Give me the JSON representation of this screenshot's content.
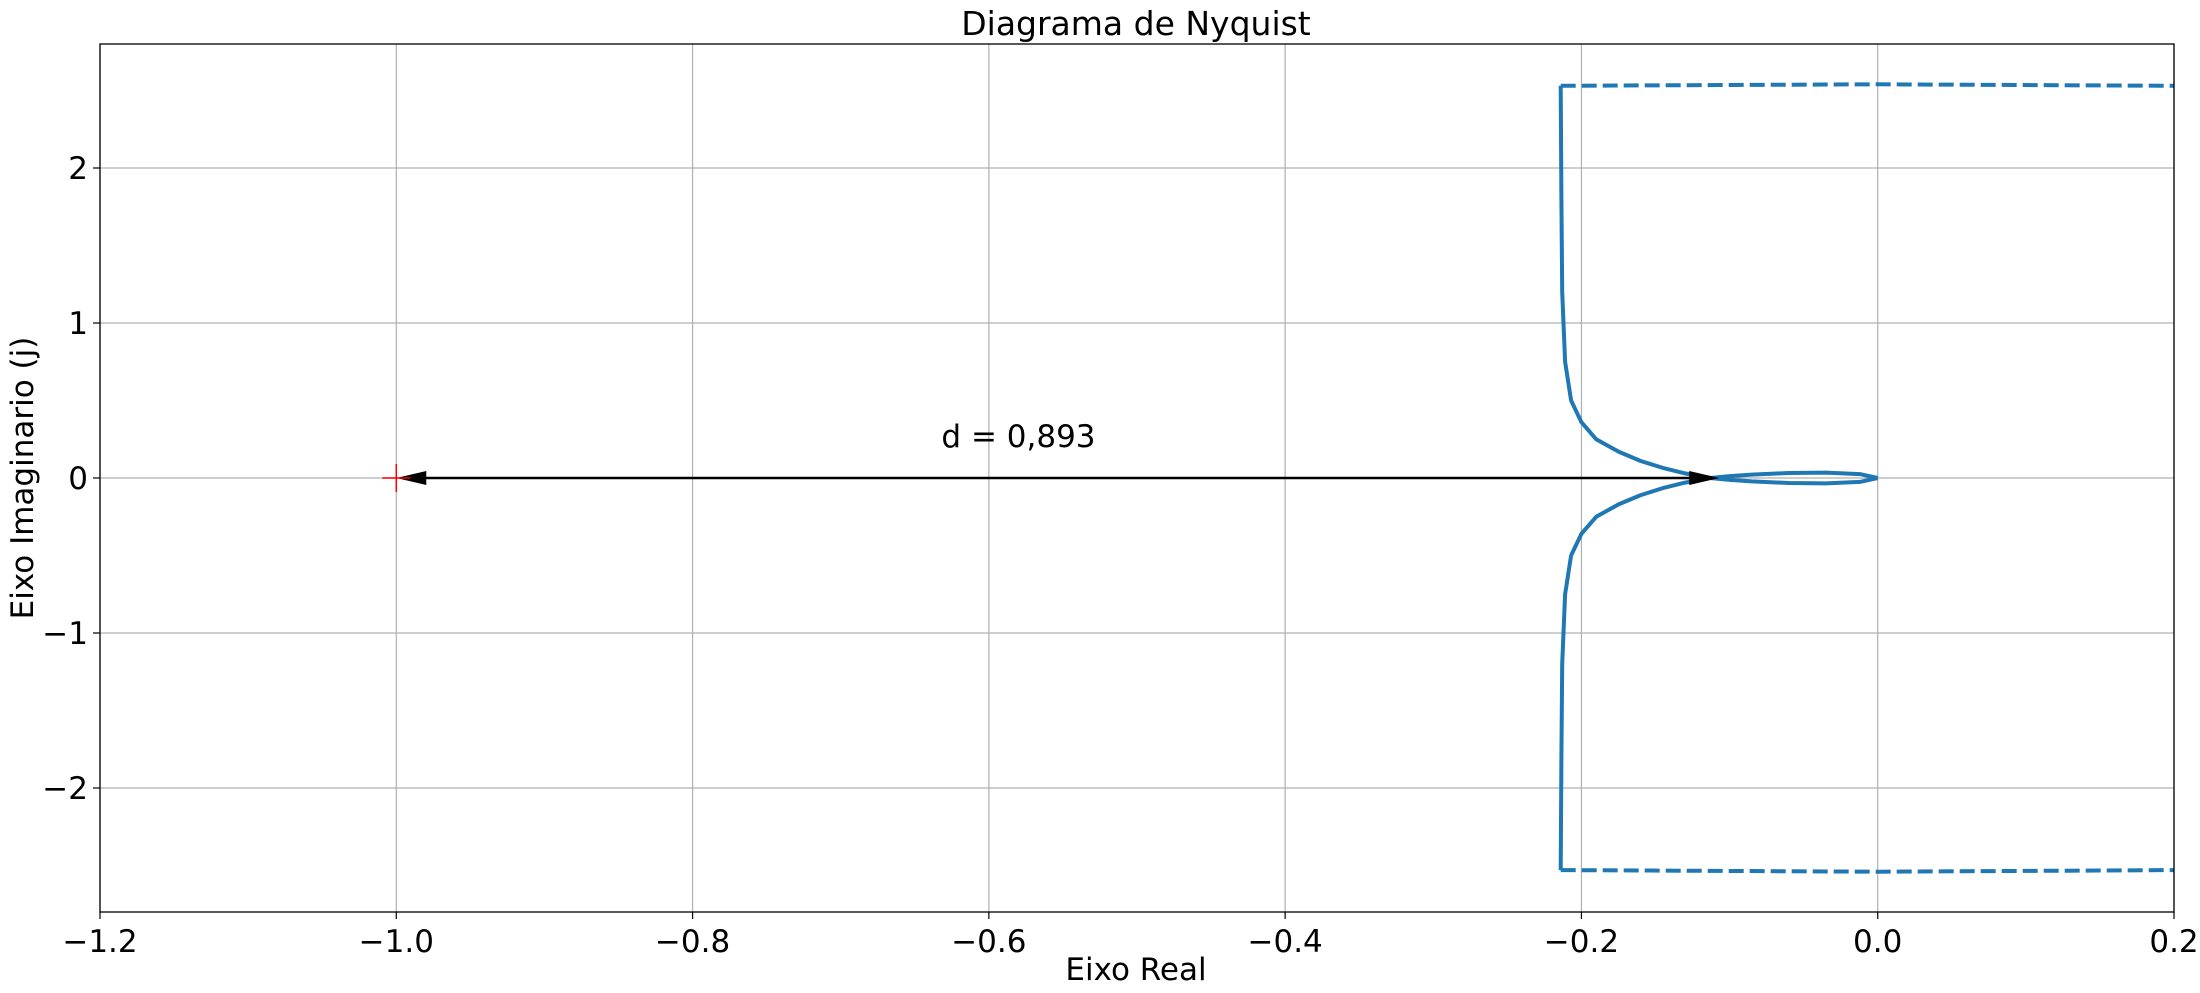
{
  "chart_data": {
    "type": "line",
    "title": "Diagrama de Nyquist",
    "xlabel": "Eixo Real",
    "ylabel": "Eixo Imaginario (j)",
    "xlim": [
      -1.2,
      0.2
    ],
    "ylim": [
      -2.8,
      2.8
    ],
    "xticks": [
      -1.2,
      -1.0,
      -0.8,
      -0.6,
      -0.4,
      -0.2,
      0.0,
      0.2
    ],
    "xtick_labels": [
      "−1.2",
      "−1.0",
      "−0.8",
      "−0.6",
      "−0.4",
      "−0.2",
      "0.0",
      "0.2"
    ],
    "yticks": [
      -2,
      -1,
      0,
      1,
      2
    ],
    "ytick_labels": [
      "−2",
      "−1",
      "0",
      "1",
      "2"
    ],
    "grid": true,
    "colors": {
      "curve": "#1f77b4",
      "critical_point": "#ff0000",
      "arrow": "#000000",
      "grid": "#b0b0b0"
    },
    "series": [
      {
        "style": "solid",
        "x": [
          -0.214,
          -0.2135,
          -0.213,
          -0.211,
          -0.207,
          -0.2,
          -0.19,
          -0.175,
          -0.16,
          -0.145,
          -0.13,
          -0.113,
          -0.1,
          -0.085,
          -0.06,
          -0.035,
          -0.012,
          0.0
        ],
        "y": [
          2.53,
          1.8,
          1.2,
          0.75,
          0.5,
          0.36,
          0.25,
          0.17,
          0.11,
          0.065,
          0.03,
          0.0,
          0.012,
          0.022,
          0.032,
          0.035,
          0.025,
          0.0
        ]
      },
      {
        "style": "solid",
        "x": [
          -0.214,
          -0.2135,
          -0.213,
          -0.211,
          -0.207,
          -0.2,
          -0.19,
          -0.175,
          -0.16,
          -0.145,
          -0.13,
          -0.113,
          -0.1,
          -0.085,
          -0.06,
          -0.035,
          -0.012,
          0.0
        ],
        "y": [
          -2.53,
          -1.8,
          -1.2,
          -0.75,
          -0.5,
          -0.36,
          -0.25,
          -0.17,
          -0.11,
          -0.065,
          -0.03,
          0.0,
          -0.012,
          -0.022,
          -0.032,
          -0.035,
          -0.025,
          0.0
        ]
      },
      {
        "style": "dashed",
        "x": [
          -0.214,
          0.0,
          0.2
        ],
        "y": [
          2.53,
          2.54,
          2.53
        ]
      },
      {
        "style": "dashed",
        "x": [
          -0.214,
          0.0,
          0.2
        ],
        "y": [
          -2.53,
          -2.54,
          -2.53
        ]
      }
    ],
    "critical_point": {
      "x": -1.0,
      "y": 0.0
    },
    "distance_arrow": {
      "x1": -1.0,
      "x2": -0.107,
      "y": 0.0
    },
    "annotations": [
      {
        "text": "d = 0,893",
        "x": -0.58,
        "y": 0.2
      }
    ]
  }
}
